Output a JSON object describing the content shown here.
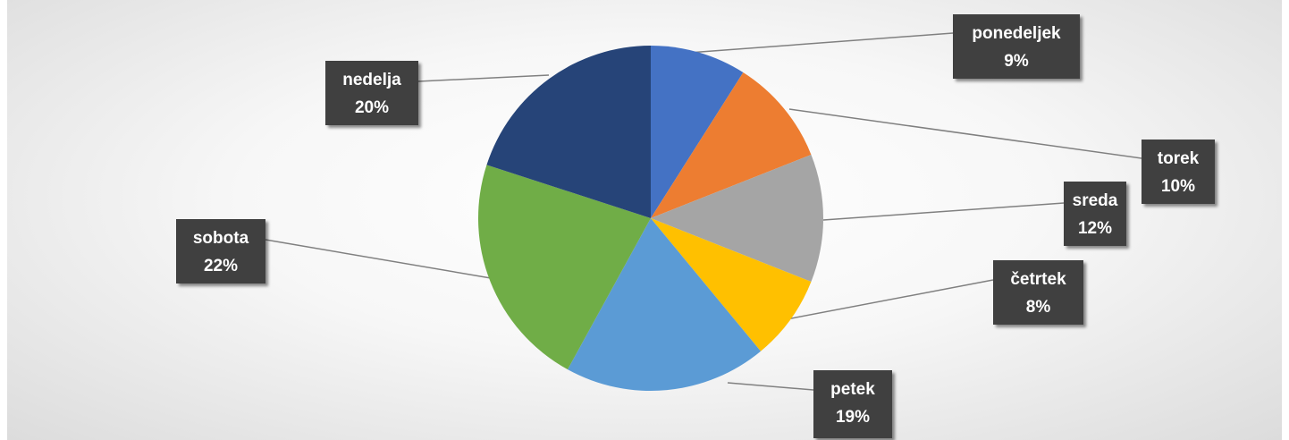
{
  "chart_data": {
    "type": "pie",
    "title": "",
    "start_angle_deg": 0,
    "direction": "clockwise",
    "slices": [
      {
        "label": "ponedeljek",
        "value": 9,
        "display": "9%",
        "color": "#4472C4"
      },
      {
        "label": "torek",
        "value": 10,
        "display": "10%",
        "color": "#ED7D31"
      },
      {
        "label": "sreda",
        "value": 12,
        "display": "12%",
        "color": "#A5A5A5"
      },
      {
        "label": "četrtek",
        "value": 8,
        "display": "8%",
        "color": "#FFC000"
      },
      {
        "label": "petek",
        "value": 19,
        "display": "19%",
        "color": "#5B9BD5"
      },
      {
        "label": "sobota",
        "value": 22,
        "display": "22%",
        "color": "#70AD47"
      },
      {
        "label": "nedelja",
        "value": 20,
        "display": "20%",
        "color": "#264478"
      }
    ],
    "data_label_style": {
      "background": "#404040",
      "text_color": "#FFFFFF",
      "leader_color": "#808080"
    },
    "legend": "none"
  }
}
